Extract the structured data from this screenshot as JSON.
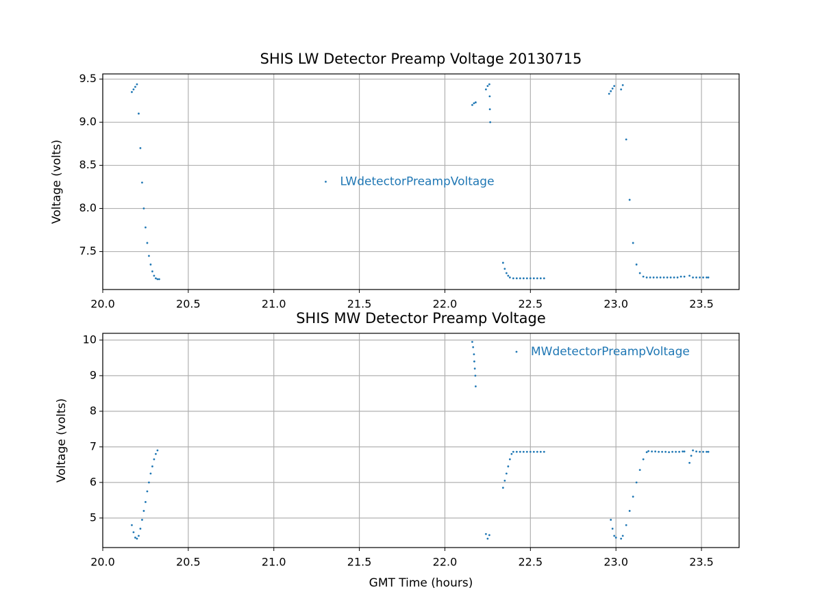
{
  "chart_data": [
    {
      "type": "scatter",
      "title": "SHIS LW Detector Preamp Voltage 20130715",
      "y_label": "Voltage (volts)",
      "x": [
        20.17,
        20.18,
        20.19,
        20.2,
        20.21,
        20.22,
        20.23,
        20.24,
        20.25,
        20.26,
        20.27,
        20.28,
        20.29,
        20.3,
        20.31,
        20.32,
        20.33,
        22.16,
        22.17,
        22.18,
        22.24,
        22.25,
        22.26,
        22.262,
        22.263,
        22.265,
        22.34,
        22.35,
        22.36,
        22.37,
        22.38,
        22.4,
        22.42,
        22.44,
        22.46,
        22.48,
        22.5,
        22.52,
        22.54,
        22.56,
        22.58,
        22.96,
        22.97,
        22.98,
        22.99,
        23.03,
        23.04,
        23.06,
        23.08,
        23.1,
        23.12,
        23.14,
        23.16,
        23.18,
        23.2,
        23.22,
        23.24,
        23.26,
        23.28,
        23.3,
        23.32,
        23.34,
        23.36,
        23.38,
        23.4,
        23.43,
        23.45,
        23.47,
        23.49,
        23.51,
        23.53,
        23.54
      ],
      "series": [
        {
          "name": "LWdetectorPreampVoltage",
          "color": "#1f77b4",
          "values": [
            9.35,
            9.38,
            9.41,
            9.44,
            9.1,
            8.7,
            8.3,
            8.0,
            7.78,
            7.6,
            7.45,
            7.35,
            7.27,
            7.22,
            7.19,
            7.18,
            7.18,
            9.2,
            9.22,
            9.23,
            9.38,
            9.42,
            9.44,
            9.3,
            9.15,
            9.0,
            7.37,
            7.3,
            7.25,
            7.22,
            7.2,
            7.19,
            7.19,
            7.19,
            7.19,
            7.19,
            7.19,
            7.19,
            7.19,
            7.19,
            7.19,
            9.33,
            9.36,
            9.39,
            9.42,
            9.38,
            9.43,
            8.8,
            8.1,
            7.6,
            7.35,
            7.25,
            7.21,
            7.2,
            7.2,
            7.2,
            7.2,
            7.2,
            7.2,
            7.2,
            7.2,
            7.2,
            7.2,
            7.21,
            7.21,
            7.22,
            7.2,
            7.2,
            7.2,
            7.2,
            7.2,
            7.2
          ]
        }
      ],
      "xlim": [
        20.0,
        23.72
      ],
      "ylim": [
        7.06,
        9.56
      ],
      "xticks": [
        {
          "value": 20,
          "label": "20.0"
        },
        20.5,
        {
          "value": 21,
          "label": "21.0"
        },
        21.5,
        {
          "value": 22,
          "label": "22.0"
        },
        22.5,
        {
          "value": 23,
          "label": "23.0"
        },
        23.5
      ],
      "yticks": [
        7.5,
        {
          "value": 8,
          "label": "8.0"
        },
        8.5,
        {
          "value": 9,
          "label": "9.0"
        },
        9.5
      ],
      "grid": true,
      "legend": "center"
    },
    {
      "type": "scatter",
      "title": "SHIS MW Detector Preamp Voltage",
      "x_label": "GMT Time (hours)",
      "y_label": "Voltage (volts)",
      "x": [
        20.17,
        20.18,
        20.19,
        20.2,
        20.21,
        20.22,
        20.23,
        20.24,
        20.25,
        20.26,
        20.27,
        20.28,
        20.29,
        20.3,
        20.31,
        20.32,
        22.16,
        22.165,
        22.17,
        22.172,
        22.175,
        22.178,
        22.18,
        22.24,
        22.25,
        22.26,
        22.34,
        22.35,
        22.36,
        22.37,
        22.38,
        22.39,
        22.4,
        22.42,
        22.44,
        22.46,
        22.48,
        22.5,
        22.52,
        22.54,
        22.56,
        22.58,
        22.97,
        22.98,
        22.99,
        23.0,
        23.03,
        23.04,
        23.06,
        23.08,
        23.1,
        23.12,
        23.14,
        23.16,
        23.18,
        23.19,
        23.21,
        23.23,
        23.25,
        23.27,
        23.29,
        23.31,
        23.33,
        23.35,
        23.37,
        23.39,
        23.4,
        23.43,
        23.44,
        23.45,
        23.47,
        23.49,
        23.51,
        23.53,
        23.54
      ],
      "series": [
        {
          "name": "MWdetectorPreampVoltage",
          "color": "#1f77b4",
          "values": [
            4.8,
            4.6,
            4.45,
            4.42,
            4.5,
            4.7,
            4.95,
            5.2,
            5.45,
            5.75,
            6.0,
            6.25,
            6.45,
            6.65,
            6.8,
            6.9,
            9.95,
            9.8,
            9.6,
            9.4,
            9.2,
            9.0,
            8.7,
            4.55,
            4.42,
            4.52,
            5.85,
            6.05,
            6.25,
            6.45,
            6.65,
            6.8,
            6.86,
            6.86,
            6.86,
            6.86,
            6.86,
            6.86,
            6.86,
            6.86,
            6.86,
            6.86,
            4.95,
            4.7,
            4.5,
            4.45,
            4.42,
            4.5,
            4.8,
            5.2,
            5.6,
            6.0,
            6.35,
            6.65,
            6.85,
            6.88,
            6.87,
            6.87,
            6.86,
            6.86,
            6.86,
            6.85,
            6.86,
            6.86,
            6.86,
            6.87,
            6.87,
            6.55,
            6.75,
            6.9,
            6.87,
            6.86,
            6.86,
            6.86,
            6.86
          ]
        }
      ],
      "xlim": [
        20.0,
        23.72
      ],
      "ylim": [
        4.17,
        10.19
      ],
      "xticks": [
        {
          "value": 20,
          "label": "20.0"
        },
        20.5,
        {
          "value": 21,
          "label": "21.0"
        },
        21.5,
        {
          "value": 22,
          "label": "22.0"
        },
        22.5,
        {
          "value": 23,
          "label": "23.0"
        },
        23.5
      ],
      "yticks": [
        5,
        6,
        7,
        8,
        9,
        10
      ],
      "grid": true,
      "legend": "upper right"
    }
  ]
}
